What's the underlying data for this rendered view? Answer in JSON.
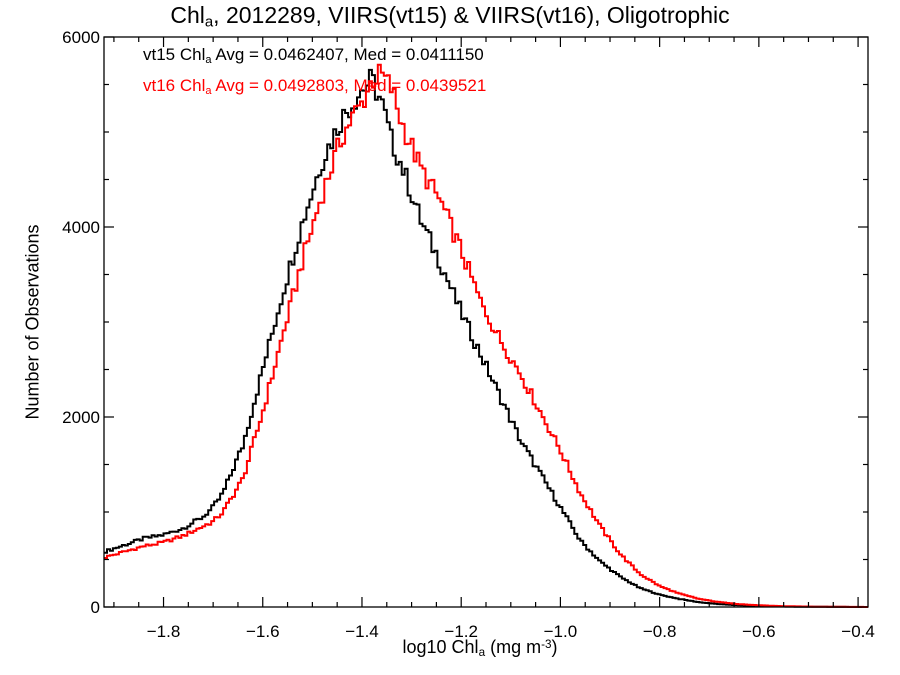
{
  "title": {
    "prefix": "Chl",
    "sub": "a",
    "suffix": ", 2012289, VIIRS(vt15) & VIIRS(vt16), Oligotrophic"
  },
  "annotations": [
    {
      "label": "vt15 Chl",
      "sub": "a",
      "text": " Avg = 0.0462407, Med = 0.0411150",
      "color": "#000000"
    },
    {
      "label": "vt16 Chl",
      "sub": "a",
      "text": " Avg = 0.0492803, Med = 0.0439521",
      "color": "#ff0000"
    }
  ],
  "xlabel": {
    "prefix": "log10 Chl",
    "sub": "a",
    "mid": " (mg m",
    "sup": "-3",
    "suffix": ")"
  },
  "ylabel": "Number of Observations",
  "chart_data": {
    "type": "line",
    "step": true,
    "xlim": [
      -1.92,
      -0.38
    ],
    "ylim": [
      0,
      6000
    ],
    "xticks": [
      -1.8,
      -1.6,
      -1.4,
      -1.2,
      -1.0,
      -0.8,
      -0.6,
      -0.4
    ],
    "xtick_labels": [
      "−1.8",
      "−1.6",
      "−1.4",
      "−1.2",
      "−1.0",
      "−0.8",
      "−0.6",
      "−0.4"
    ],
    "yticks": [
      0,
      2000,
      4000,
      6000
    ],
    "ytick_labels": [
      "0",
      "2000",
      "4000",
      "6000"
    ],
    "grid": false,
    "series": [
      {
        "name": "vt15",
        "color": "#000000",
        "x": [
          -1.92,
          -1.88,
          -1.84,
          -1.8,
          -1.76,
          -1.72,
          -1.7,
          -1.68,
          -1.64,
          -1.6,
          -1.56,
          -1.52,
          -1.48,
          -1.44,
          -1.42,
          -1.4,
          -1.38,
          -1.36,
          -1.34,
          -1.32,
          -1.3,
          -1.28,
          -1.24,
          -1.2,
          -1.16,
          -1.12,
          -1.08,
          -1.04,
          -1.0,
          -0.96,
          -0.92,
          -0.88,
          -0.84,
          -0.8,
          -0.76,
          -0.72,
          -0.68,
          -0.64,
          -0.6,
          -0.56,
          -0.52,
          -0.48,
          -0.44,
          -0.4,
          -0.38
        ],
        "y": [
          580,
          650,
          720,
          760,
          830,
          950,
          1050,
          1200,
          1700,
          2500,
          3300,
          4050,
          4700,
          5150,
          5300,
          5450,
          5550,
          5300,
          4900,
          4650,
          4350,
          4050,
          3600,
          3100,
          2650,
          2200,
          1750,
          1400,
          1050,
          700,
          480,
          320,
          200,
          130,
          85,
          50,
          30,
          18,
          10,
          6,
          3,
          2,
          1,
          0,
          0
        ]
      },
      {
        "name": "vt16",
        "color": "#ff0000",
        "x": [
          -1.92,
          -1.88,
          -1.84,
          -1.8,
          -1.76,
          -1.72,
          -1.7,
          -1.68,
          -1.64,
          -1.6,
          -1.56,
          -1.52,
          -1.48,
          -1.44,
          -1.42,
          -1.4,
          -1.38,
          -1.36,
          -1.34,
          -1.32,
          -1.3,
          -1.28,
          -1.24,
          -1.2,
          -1.16,
          -1.12,
          -1.08,
          -1.04,
          -1.0,
          -0.96,
          -0.92,
          -0.88,
          -0.84,
          -0.8,
          -0.76,
          -0.72,
          -0.68,
          -0.64,
          -0.6,
          -0.56,
          -0.52,
          -0.48,
          -0.44,
          -0.4,
          -0.38
        ],
        "y": [
          520,
          580,
          640,
          680,
          750,
          850,
          900,
          1000,
          1350,
          2050,
          2850,
          3650,
          4350,
          4950,
          5150,
          5300,
          5550,
          5600,
          5450,
          5100,
          4850,
          4600,
          4250,
          3750,
          3200,
          2800,
          2450,
          2050,
          1650,
          1200,
          850,
          560,
          350,
          220,
          140,
          85,
          52,
          30,
          18,
          10,
          6,
          3,
          2,
          1,
          0
        ]
      }
    ]
  }
}
